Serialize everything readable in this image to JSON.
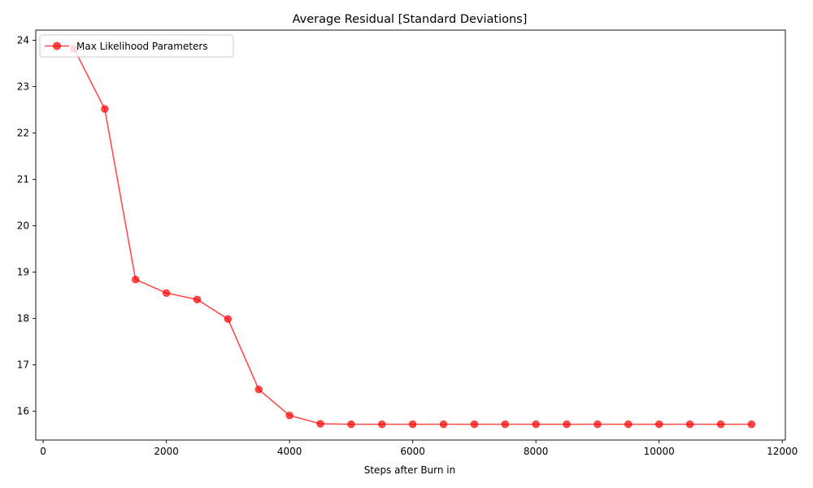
{
  "chart_data": {
    "type": "line",
    "title": "Average Residual [Standard Deviations]",
    "xlabel": "Steps after Burn in",
    "ylabel": "",
    "xlim": [
      -120,
      12050
    ],
    "ylim": [
      15.38,
      24.22
    ],
    "x_ticks": [
      0,
      2000,
      4000,
      6000,
      8000,
      10000,
      12000
    ],
    "x_tick_labels": [
      "0",
      "2000",
      "4000",
      "6000",
      "8000",
      "10000",
      "12000"
    ],
    "y_ticks": [
      16,
      17,
      18,
      19,
      20,
      21,
      22,
      23,
      24
    ],
    "y_tick_labels": [
      "16",
      "17",
      "18",
      "19",
      "20",
      "21",
      "22",
      "23",
      "24"
    ],
    "grid": false,
    "legend_position": "upper-left",
    "series": [
      {
        "name": "Max Likelihood Parameters",
        "color": "#ff0000",
        "marker": "circle",
        "x": [
          500,
          1000,
          1500,
          2000,
          2500,
          3000,
          3500,
          4000,
          4500,
          5000,
          5500,
          6000,
          6500,
          7000,
          7500,
          8000,
          8500,
          9000,
          9500,
          10000,
          10500,
          11000,
          11500
        ],
        "y": [
          23.82,
          22.52,
          18.84,
          18.55,
          18.41,
          17.99,
          16.47,
          15.91,
          15.73,
          15.72,
          15.72,
          15.72,
          15.72,
          15.72,
          15.72,
          15.72,
          15.72,
          15.72,
          15.72,
          15.72,
          15.72,
          15.72,
          15.72
        ]
      }
    ]
  }
}
